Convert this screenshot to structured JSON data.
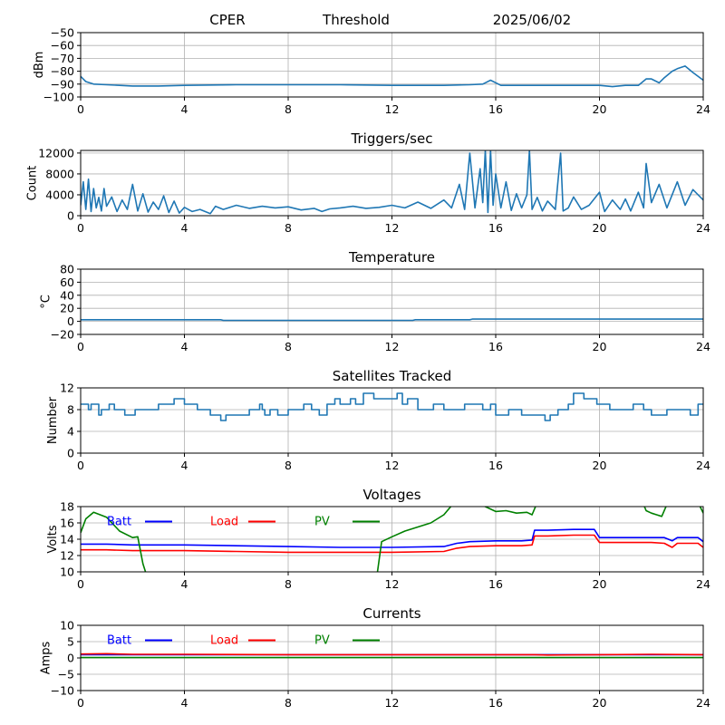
{
  "header": {
    "site": "CPER",
    "mode": "Threshold",
    "date": "2025/06/02"
  },
  "colors": {
    "series": "#1f77b4",
    "batt": "#0000ff",
    "load": "#ff0000",
    "pv": "#008000",
    "grid": "#b0b0b0"
  },
  "chart_data": [
    {
      "id": "threshold",
      "type": "line",
      "title": "",
      "xlabel": "",
      "ylabel": "dBm",
      "xlim": [
        0,
        24
      ],
      "ylim": [
        -100,
        -50
      ],
      "xticks": [
        0,
        4,
        8,
        12,
        16,
        20,
        24
      ],
      "yticks": [
        -100,
        -90,
        -80,
        -70,
        -60,
        -50
      ],
      "yticklabels": [
        "−100",
        "−90",
        "−80",
        "−70",
        "−60",
        "−50"
      ],
      "grid": true,
      "series": [
        {
          "color": "#1f77b4",
          "x": [
            0,
            0.2,
            0.5,
            1,
            2,
            3,
            4,
            6,
            8,
            10,
            12,
            14,
            15,
            15.5,
            15.8,
            16.2,
            17,
            18,
            19,
            20,
            20.5,
            21,
            21.5,
            21.8,
            22,
            22.3,
            22.5,
            22.8,
            23,
            23.3,
            23.6,
            24
          ],
          "y": [
            -84,
            -88,
            -90,
            -90.5,
            -91.5,
            -91.5,
            -91,
            -90.5,
            -90.5,
            -90.5,
            -91,
            -91,
            -90.5,
            -90,
            -87,
            -91,
            -91,
            -91,
            -91,
            -91,
            -92,
            -91,
            -91,
            -86,
            -86,
            -89,
            -85,
            -80,
            -78,
            -76,
            -81,
            -87
          ]
        }
      ]
    },
    {
      "id": "triggers",
      "type": "line",
      "title": "Triggers/sec",
      "xlabel": "",
      "ylabel": "Count",
      "xlim": [
        0,
        24
      ],
      "ylim": [
        0,
        12500
      ],
      "xticks": [
        0,
        4,
        8,
        12,
        16,
        20,
        24
      ],
      "yticks": [
        0,
        4000,
        8000,
        12000
      ],
      "yticklabels": [
        "0",
        "4000",
        "8000",
        "12000"
      ],
      "grid": true,
      "series": [
        {
          "color": "#1f77b4",
          "x": [
            0,
            0.1,
            0.2,
            0.3,
            0.4,
            0.5,
            0.6,
            0.7,
            0.8,
            0.9,
            1.0,
            1.2,
            1.4,
            1.6,
            1.8,
            2.0,
            2.2,
            2.4,
            2.6,
            2.8,
            3.0,
            3.2,
            3.4,
            3.6,
            3.8,
            4.0,
            4.3,
            4.6,
            5.0,
            5.2,
            5.5,
            6.0,
            6.5,
            7.0,
            7.5,
            8.0,
            8.5,
            9.0,
            9.3,
            9.6,
            10.0,
            10.5,
            11.0,
            11.5,
            12.0,
            12.5,
            13.0,
            13.5,
            14.0,
            14.3,
            14.6,
            14.8,
            15.0,
            15.2,
            15.4,
            15.5,
            15.6,
            15.7,
            15.8,
            15.9,
            16.0,
            16.2,
            16.4,
            16.6,
            16.8,
            17.0,
            17.2,
            17.3,
            17.4,
            17.6,
            17.8,
            18.0,
            18.3,
            18.5,
            18.6,
            18.8,
            19.0,
            19.3,
            19.6,
            20.0,
            20.2,
            20.5,
            20.8,
            21.0,
            21.2,
            21.5,
            21.7,
            21.8,
            22.0,
            22.3,
            22.6,
            23.0,
            23.3,
            23.6,
            24.0
          ],
          "y": [
            2000,
            6500,
            1200,
            7000,
            800,
            5200,
            1500,
            3500,
            900,
            5200,
            1800,
            3600,
            800,
            3000,
            1200,
            6000,
            900,
            4200,
            700,
            2600,
            1200,
            3800,
            600,
            2800,
            500,
            1600,
            800,
            1200,
            400,
            1800,
            1200,
            2000,
            1400,
            1800,
            1500,
            1700,
            1100,
            1400,
            800,
            1300,
            1500,
            1800,
            1400,
            1600,
            2000,
            1500,
            2600,
            1400,
            3000,
            1500,
            6000,
            1200,
            12000,
            1500,
            9000,
            2500,
            12500,
            600,
            12500,
            2000,
            8000,
            1500,
            6500,
            1000,
            4200,
            1500,
            4000,
            12500,
            1200,
            3500,
            900,
            2800,
            1200,
            12000,
            900,
            1500,
            3600,
            1200,
            2000,
            4500,
            800,
            3000,
            1200,
            3200,
            900,
            4500,
            1500,
            10000,
            2500,
            6000,
            1500,
            6500,
            2000,
            5000,
            3000
          ]
        }
      ]
    },
    {
      "id": "temperature",
      "type": "line",
      "title": "Temperature",
      "xlabel": "",
      "ylabel": "°C",
      "xlim": [
        0,
        24
      ],
      "ylim": [
        -20,
        80
      ],
      "xticks": [
        0,
        4,
        8,
        12,
        16,
        20,
        24
      ],
      "yticks": [
        -20,
        0,
        20,
        40,
        60,
        80
      ],
      "yticklabels": [
        "−20",
        "0",
        "20",
        "40",
        "60",
        "80"
      ],
      "grid": true,
      "series": [
        {
          "color": "#1f77b4",
          "x": [
            0,
            5.4,
            5.5,
            12.8,
            12.9,
            15.0,
            15.1,
            24
          ],
          "y": [
            2.5,
            2.5,
            1.5,
            1.5,
            2.5,
            2.5,
            3.5,
            3.5
          ]
        }
      ]
    },
    {
      "id": "satellites",
      "type": "line",
      "title": "Satellites Tracked",
      "xlabel": "",
      "ylabel": "Number",
      "xlim": [
        0,
        24
      ],
      "ylim": [
        0,
        12
      ],
      "xticks": [
        0,
        4,
        8,
        12,
        16,
        20,
        24
      ],
      "yticks": [
        0,
        4,
        8,
        12
      ],
      "yticklabels": [
        "0",
        "4",
        "8",
        "12"
      ],
      "grid": true,
      "step": true,
      "series": [
        {
          "color": "#1f77b4",
          "x": [
            0,
            0.3,
            0.4,
            0.7,
            0.8,
            1.1,
            1.3,
            1.7,
            2.1,
            2.6,
            3.0,
            3.6,
            4.0,
            4.5,
            5.0,
            5.4,
            5.6,
            6.5,
            6.9,
            7.0,
            7.1,
            7.3,
            7.6,
            8.0,
            8.6,
            8.9,
            9.2,
            9.5,
            9.8,
            10.0,
            10.4,
            10.6,
            10.9,
            11.3,
            11.8,
            12.2,
            12.4,
            12.6,
            13.0,
            13.6,
            14.0,
            14.8,
            15.5,
            15.8,
            16.0,
            16.5,
            17.0,
            17.5,
            17.9,
            18.1,
            18.4,
            18.8,
            19.0,
            19.4,
            19.9,
            20.4,
            20.9,
            21.3,
            21.7,
            22.0,
            22.6,
            23.0,
            23.3,
            23.5,
            23.8,
            24.0
          ],
          "y": [
            9,
            8,
            9,
            7,
            8,
            9,
            8,
            7,
            8,
            8,
            9,
            10,
            9,
            8,
            7,
            6,
            7,
            8,
            9,
            8,
            7,
            8,
            7,
            8,
            9,
            8,
            7,
            9,
            10,
            9,
            10,
            9,
            11,
            10,
            10,
            11,
            9,
            10,
            8,
            9,
            8,
            9,
            8,
            9,
            7,
            8,
            7,
            7,
            6,
            7,
            8,
            9,
            11,
            10,
            9,
            8,
            8,
            9,
            8,
            7,
            8,
            8,
            8,
            7,
            9,
            9
          ]
        }
      ]
    },
    {
      "id": "voltages",
      "type": "line",
      "title": "Voltages",
      "xlabel": "",
      "ylabel": "Volts",
      "xlim": [
        0,
        24
      ],
      "ylim": [
        10,
        18
      ],
      "xticks": [
        0,
        4,
        8,
        12,
        16,
        20,
        24
      ],
      "yticks": [
        10,
        12,
        14,
        16,
        18
      ],
      "yticklabels": [
        "10",
        "12",
        "14",
        "16",
        "18"
      ],
      "grid": true,
      "legend": "top-left",
      "series": [
        {
          "name": "Batt",
          "color": "#0000ff",
          "x": [
            0,
            1,
            2,
            3,
            4,
            6,
            8,
            10,
            12,
            14,
            14.5,
            15,
            16,
            17,
            17.4,
            17.5,
            18,
            19,
            19.8,
            20,
            21,
            22,
            22.5,
            22.8,
            23,
            23.5,
            23.8,
            24
          ],
          "y": [
            13.4,
            13.4,
            13.3,
            13.3,
            13.3,
            13.2,
            13.1,
            13.0,
            13.0,
            13.1,
            13.5,
            13.7,
            13.8,
            13.8,
            13.9,
            15.1,
            15.1,
            15.2,
            15.2,
            14.2,
            14.2,
            14.2,
            14.2,
            13.8,
            14.2,
            14.2,
            14.2,
            13.7
          ]
        },
        {
          "name": "Load",
          "color": "#ff0000",
          "x": [
            0,
            1,
            2,
            3,
            4,
            6,
            8,
            10,
            12,
            14,
            14.5,
            15,
            16,
            17,
            17.4,
            17.5,
            18,
            19,
            19.8,
            20,
            21,
            22,
            22.5,
            22.8,
            23,
            23.5,
            23.8,
            24
          ],
          "y": [
            12.7,
            12.7,
            12.6,
            12.6,
            12.6,
            12.5,
            12.4,
            12.4,
            12.4,
            12.5,
            12.9,
            13.1,
            13.2,
            13.2,
            13.3,
            14.4,
            14.4,
            14.5,
            14.5,
            13.6,
            13.6,
            13.6,
            13.5,
            13.0,
            13.5,
            13.5,
            13.5,
            13.0
          ]
        },
        {
          "name": "PV",
          "color": "#008000",
          "x": [
            0,
            0.2,
            0.5,
            1.0,
            1.5,
            2.0,
            2.2,
            2.4,
            2.6,
            11.4,
            11.6,
            12.0,
            12.5,
            13.0,
            13.5,
            14.0,
            14.4,
            14.8,
            15.2,
            15.6,
            16.0,
            16.4,
            16.8,
            17.2,
            17.4,
            17.6,
            21.6,
            21.8,
            22.0,
            22.2,
            22.4,
            22.7,
            23.0,
            23.8,
            24.0
          ],
          "y": [
            14.8,
            16.5,
            17.3,
            16.7,
            15.0,
            14.2,
            14.3,
            11.0,
            9.0,
            9.0,
            13.7,
            14.3,
            15.0,
            15.5,
            16.0,
            17.0,
            18.5,
            19.0,
            18.5,
            18.0,
            17.4,
            17.5,
            17.2,
            17.3,
            17.0,
            18.5,
            19.0,
            17.5,
            17.2,
            17.0,
            16.8,
            19.0,
            19.5,
            18.5,
            17.2
          ]
        }
      ]
    },
    {
      "id": "currents",
      "type": "line",
      "title": "Currents",
      "xlabel": "",
      "ylabel": "Amps",
      "xlim": [
        0,
        24
      ],
      "ylim": [
        -10,
        10
      ],
      "xticks": [
        0,
        4,
        8,
        12,
        16,
        20,
        24
      ],
      "yticks": [
        -10,
        -5,
        0,
        5,
        10
      ],
      "yticklabels": [
        "−10",
        "−5",
        "0",
        "5",
        "10"
      ],
      "grid": true,
      "legend": "top-left",
      "series": [
        {
          "name": "Batt",
          "color": "#0000ff",
          "x": [
            0,
            24
          ],
          "y": [
            1.0,
            1.0
          ]
        },
        {
          "name": "Load",
          "color": "#ff0000",
          "x": [
            0,
            1,
            2,
            4,
            8,
            12,
            16,
            17.5,
            18,
            20,
            22,
            24
          ],
          "y": [
            1.2,
            1.3,
            1.1,
            1.1,
            1.0,
            1.0,
            1.0,
            1.0,
            0.9,
            1.0,
            1.1,
            1.0
          ]
        },
        {
          "name": "PV",
          "color": "#008000",
          "x": [
            0,
            24
          ],
          "y": [
            0.1,
            0.1
          ]
        }
      ]
    }
  ]
}
